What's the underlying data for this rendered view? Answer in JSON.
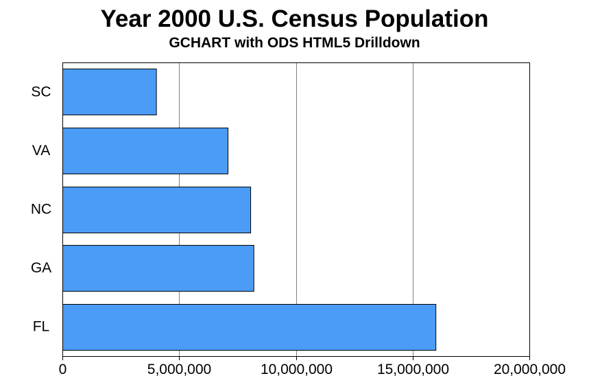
{
  "chart_data": {
    "type": "bar",
    "orientation": "horizontal",
    "title": "Year 2000 U.S. Census Population",
    "subtitle": "GCHART with ODS HTML5 Drilldown",
    "categories": [
      "SC",
      "VA",
      "NC",
      "GA",
      "FL"
    ],
    "values": [
      4012012,
      7078515,
      8049313,
      8186453,
      15982378
    ],
    "xlim": [
      0,
      20000000
    ],
    "xticks": [
      0,
      5000000,
      10000000,
      15000000,
      20000000
    ],
    "xtick_labels": [
      "0",
      "5,000,000",
      "10,000,000",
      "15,000,000",
      "20,000,000"
    ],
    "xlabel": "",
    "ylabel": "",
    "grid": "vertical",
    "legend": "none",
    "bar_color": "#4b9cf6"
  }
}
